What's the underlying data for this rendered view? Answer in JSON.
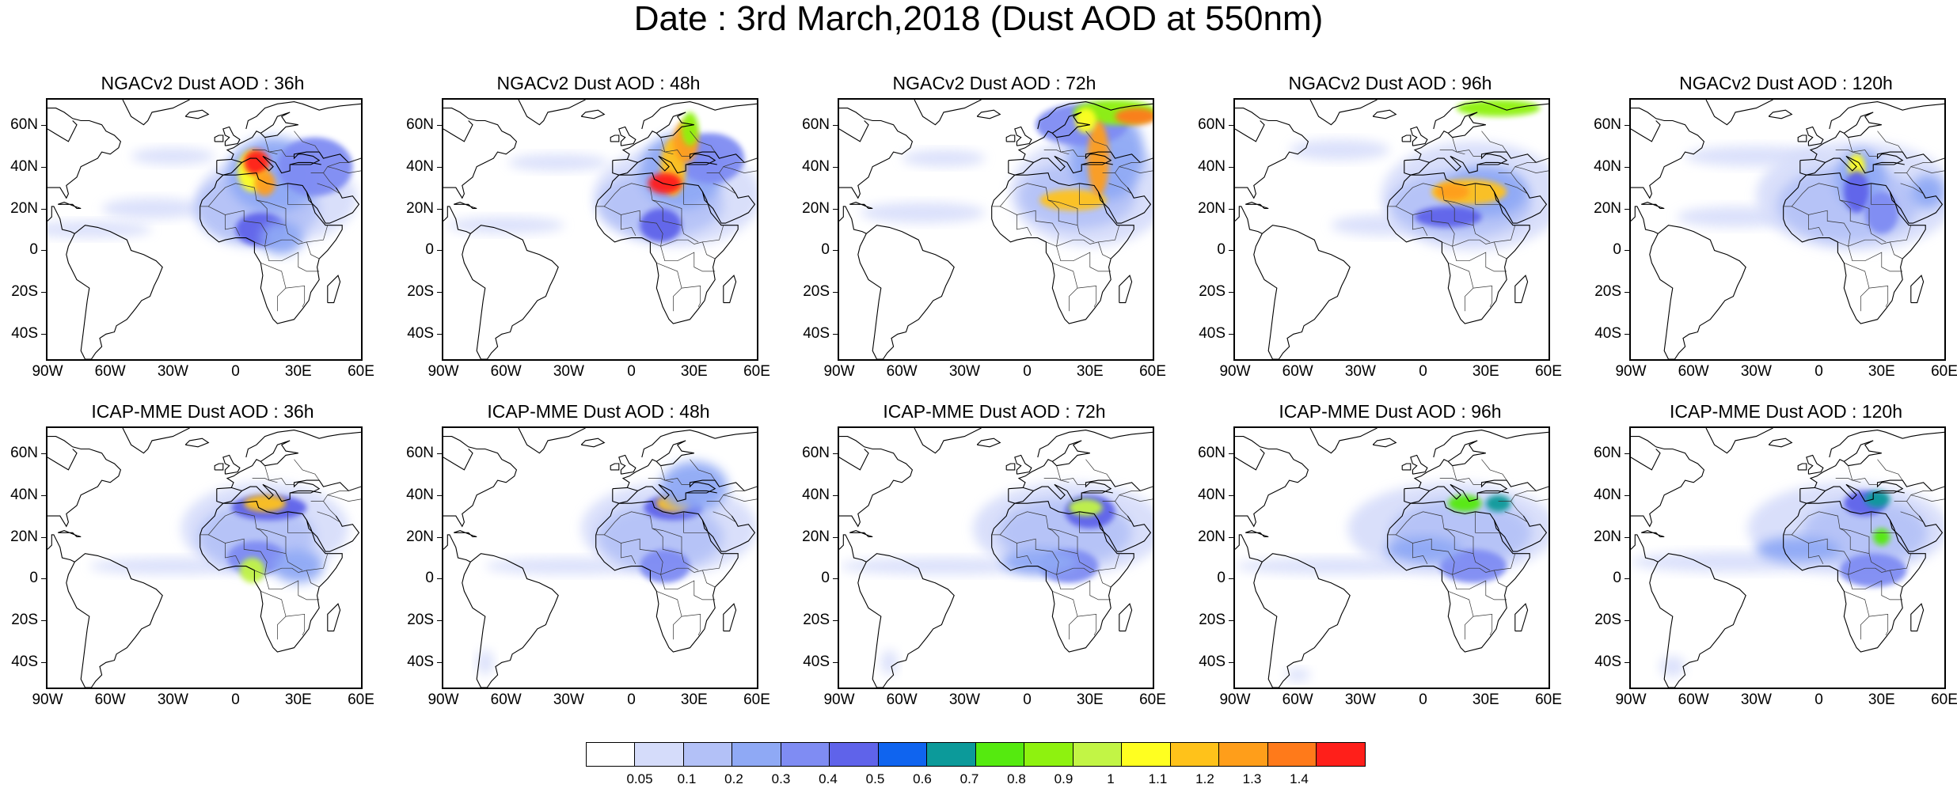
{
  "title": "Date : 3rd March,2018 (Dust AOD at 550nm)",
  "lat_labels": [
    "60N",
    "40N",
    "20N",
    "0",
    "20S",
    "40S"
  ],
  "lon_labels": [
    "90W",
    "60W",
    "30W",
    "0",
    "30E",
    "60E"
  ],
  "panels": [
    {
      "title": "NGACv2 Dust AOD : 36h"
    },
    {
      "title": "NGACv2 Dust AOD : 48h"
    },
    {
      "title": "NGACv2 Dust AOD : 72h"
    },
    {
      "title": "NGACv2 Dust AOD : 96h"
    },
    {
      "title": "NGACv2 Dust AOD : 120h"
    },
    {
      "title": "ICAP-MME Dust AOD : 36h"
    },
    {
      "title": "ICAP-MME Dust AOD : 48h"
    },
    {
      "title": "ICAP-MME Dust AOD : 72h"
    },
    {
      "title": "ICAP-MME Dust AOD : 96h"
    },
    {
      "title": "ICAP-MME Dust AOD : 120h"
    }
  ],
  "colorbar": {
    "labels": [
      "0.05",
      "0.1",
      "0.2",
      "0.3",
      "0.4",
      "0.5",
      "0.6",
      "0.7",
      "0.8",
      "0.9",
      "1",
      "1.1",
      "1.2",
      "1.3",
      "1.4"
    ],
    "colors": [
      "#ffffff",
      "#d5dcfa",
      "#b3c1f7",
      "#8fa9f5",
      "#7f8cf3",
      "#5f63ea",
      "#0f64ef",
      "#0c9a9a",
      "#55ea0f",
      "#8ef20f",
      "#c2f545",
      "#ffff20",
      "#ffc21a",
      "#ff9e1a",
      "#ff7a1a",
      "#ff1f1a"
    ]
  }
}
